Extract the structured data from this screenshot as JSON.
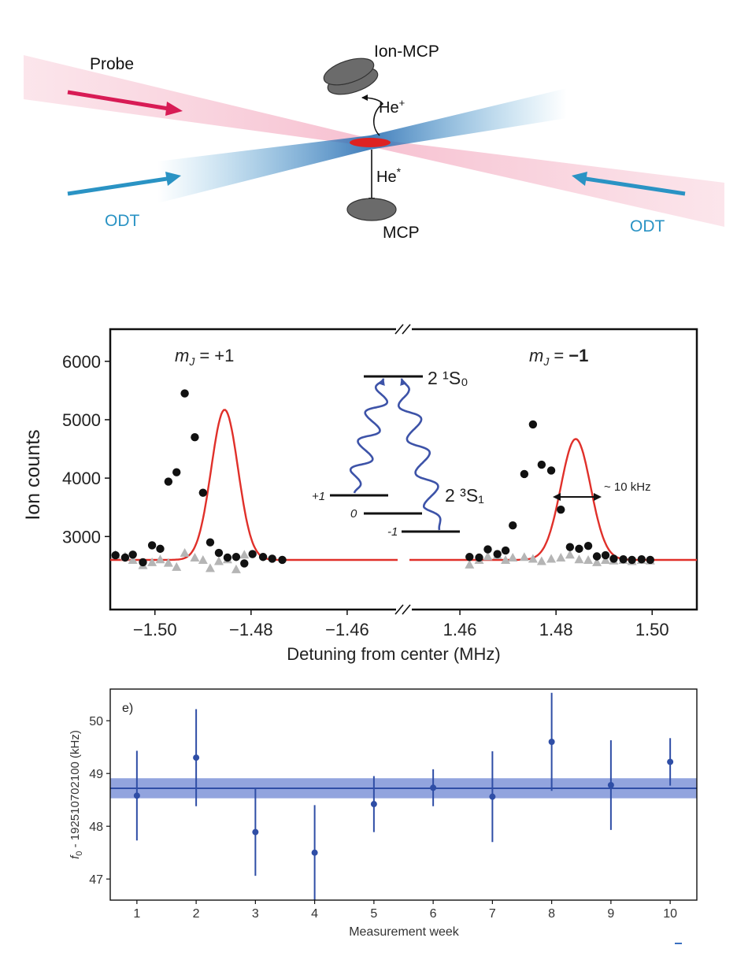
{
  "schematic": {
    "probe_label": "Probe",
    "ion_mcp_label": "Ion-MCP",
    "he_plus_base": "He",
    "he_plus_sup": "+",
    "he_star_base": "He",
    "he_star_sup": "*",
    "mcp_label": "MCP",
    "odt_left_label": "ODT",
    "odt_right_label": "ODT",
    "colors": {
      "probe": "#d81b55",
      "odt": "#2a93c4",
      "atoms": "#dd2222",
      "detector": "#666666"
    }
  },
  "chart_data": [
    {
      "type": "scatter",
      "title": "",
      "xlabel": "Detuning from center (MHz)",
      "ylabel": "Ion counts",
      "ylim": [
        1750,
        6550
      ],
      "yticks": [
        3000,
        4000,
        5000,
        6000
      ],
      "ytick_labels": [
        "3000",
        "4000",
        "5000",
        "6000"
      ],
      "broken_axis": true,
      "panels": [
        {
          "name": "left",
          "xlim": [
            -1.5093,
            -1.4495
          ],
          "xticks": [
            -1.5,
            -1.48,
            -1.46
          ],
          "xtick_labels": [
            "−1.50",
            "−1.48",
            "−1.46"
          ],
          "label": "m_J = +1",
          "series": [
            {
              "name": "ion counts",
              "color": "#111111",
              "marker": "circle",
              "x": [
                -1.5082,
                -1.5062,
                -1.5046,
                -1.5025,
                -1.5006,
                -1.4989,
                -1.4972,
                -1.4955,
                -1.4938,
                -1.4917,
                -1.49,
                -1.4885,
                -1.4867,
                -1.4849,
                -1.4831,
                -1.4814,
                -1.4797,
                -1.4775,
                -1.4756,
                -1.4735
              ],
              "y": [
                2680,
                2640,
                2690,
                2560,
                2850,
                2790,
                3940,
                4100,
                5450,
                4700,
                3750,
                2900,
                2720,
                2640,
                2650,
                2540,
                2700,
                2650,
                2620,
                2600
              ]
            },
            {
              "name": "background",
              "color": "#b5b5b5",
              "marker": "triangle",
              "x": [
                -1.5082,
                -1.5062,
                -1.5046,
                -1.5025,
                -1.5006,
                -1.4989,
                -1.4972,
                -1.4955,
                -1.4938,
                -1.4917,
                -1.49,
                -1.4885,
                -1.4867,
                -1.4849,
                -1.4831,
                -1.4814
              ],
              "y": [
                2690,
                2660,
                2600,
                2510,
                2560,
                2610,
                2550,
                2480,
                2720,
                2640,
                2600,
                2460,
                2580,
                2610,
                2440,
                2690
              ]
            },
            {
              "name": "fit",
              "color": "#e0302a",
              "type": "line",
              "baseline": 2600,
              "amplitude": 2570,
              "center": -1.4855,
              "sigma": 0.0028
            }
          ]
        },
        {
          "name": "right",
          "xlim": [
            1.4495,
            1.5093
          ],
          "xticks": [
            1.46,
            1.48,
            1.5
          ],
          "xtick_labels": [
            "1.46",
            "1.48",
            "1.50"
          ],
          "label": "m_J = −1",
          "series": [
            {
              "name": "ion counts",
              "color": "#111111",
              "marker": "circle",
              "x": [
                1.462,
                1.464,
                1.4658,
                1.4678,
                1.4695,
                1.471,
                1.4734,
                1.4752,
                1.477,
                1.479,
                1.481,
                1.4829,
                1.4848,
                1.4867,
                1.4885,
                1.4903,
                1.492,
                1.494,
                1.4958,
                1.4978,
                1.4996
              ],
              "y": [
                2650,
                2640,
                2780,
                2700,
                2760,
                3190,
                4070,
                4920,
                4230,
                4130,
                3460,
                2820,
                2790,
                2840,
                2660,
                2680,
                2620,
                2610,
                2600,
                2610,
                2600
              ]
            },
            {
              "name": "background",
              "color": "#b5b5b5",
              "marker": "triangle",
              "x": [
                1.462,
                1.464,
                1.4658,
                1.4678,
                1.4695,
                1.471,
                1.4734,
                1.4752,
                1.477,
                1.479,
                1.481,
                1.4829,
                1.4848,
                1.4867,
                1.4885,
                1.4903,
                1.492,
                1.494,
                1.4958,
                1.4978,
                1.4996
              ],
              "y": [
                2520,
                2600,
                2660,
                2680,
                2600,
                2640,
                2650,
                2620,
                2580,
                2620,
                2640,
                2690,
                2610,
                2600,
                2560,
                2600,
                2590,
                2600,
                2580,
                2600,
                2590
              ]
            },
            {
              "name": "fit",
              "color": "#e0302a",
              "type": "line",
              "baseline": 2600,
              "amplitude": 2070,
              "center": 1.4841,
              "sigma": 0.0031
            }
          ]
        }
      ],
      "inset": {
        "upper_level": "2 ¹S₀",
        "lower_level": "2 ³S₁",
        "sublevels": [
          "+1",
          "0",
          "-1"
        ],
        "width_annotation": "~ 10 kHz",
        "wave_color": "#3d53a8"
      }
    },
    {
      "type": "scatter",
      "title": "",
      "panel_label": "e)",
      "xlabel": "Measurement week",
      "ylabel_f": "f",
      "ylabel_sub": "0",
      "ylabel_rest": " - 192510702100 (kHz)",
      "xlim": [
        0.55,
        10.45
      ],
      "ylim": [
        46.6,
        50.6
      ],
      "xticks": [
        1,
        2,
        3,
        4,
        5,
        6,
        7,
        8,
        9,
        10
      ],
      "xtick_labels": [
        "1",
        "2",
        "3",
        "4",
        "5",
        "6",
        "7",
        "8",
        "9",
        "10"
      ],
      "yticks": [
        47,
        48,
        49,
        50
      ],
      "ytick_labels": [
        "47",
        "48",
        "49",
        "50"
      ],
      "series": [
        {
          "name": "weekly f0",
          "color": "#2f4ea6",
          "x": [
            1,
            2,
            3,
            4,
            5,
            6,
            7,
            8,
            9,
            10
          ],
          "y": [
            48.58,
            49.3,
            47.89,
            47.5,
            48.42,
            48.73,
            48.56,
            49.6,
            48.78,
            49.22
          ],
          "err": [
            0.85,
            0.92,
            0.83,
            0.9,
            0.53,
            0.35,
            0.86,
            0.93,
            0.85,
            0.45
          ]
        }
      ],
      "mean": {
        "value": 48.72,
        "band": [
          48.53,
          48.91
        ],
        "color": "#2f4ea6",
        "band_color": "#7f94d8"
      }
    }
  ]
}
